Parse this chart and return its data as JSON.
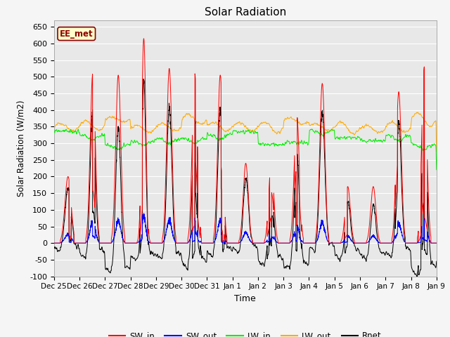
{
  "title": "Solar Radiation",
  "ylabel": "Solar Radiation (W/m2)",
  "xlabel": "Time",
  "ylim": [
    -100,
    670
  ],
  "yticks": [
    -100,
    -50,
    0,
    50,
    100,
    150,
    200,
    250,
    300,
    350,
    400,
    450,
    500,
    550,
    600,
    650
  ],
  "xtick_labels": [
    "Dec 25",
    "Dec 26",
    "Dec 27",
    "Dec 28",
    "Dec 29",
    "Dec 30",
    "Dec 31",
    "Jan 1",
    "Jan 2",
    "Jan 3",
    "Jan 4",
    "Jan 5",
    "Jan 6",
    "Jan 7",
    "Jan 8",
    "Jan 9"
  ],
  "n_days": 15,
  "points_per_day": 288,
  "label_box_text": "EE_met",
  "line_colors": {
    "SW_in": "#ff0000",
    "SW_out": "#0000ff",
    "LW_in": "#00ee00",
    "LW_out": "#ffaa00",
    "Rnet": "#000000"
  },
  "legend_labels": [
    "SW_in",
    "SW_out",
    "LW_in",
    "LW_out",
    "Rnet"
  ],
  "background_color": "#e8e8e8",
  "figsize": [
    6.4,
    4.8
  ],
  "dpi": 100
}
